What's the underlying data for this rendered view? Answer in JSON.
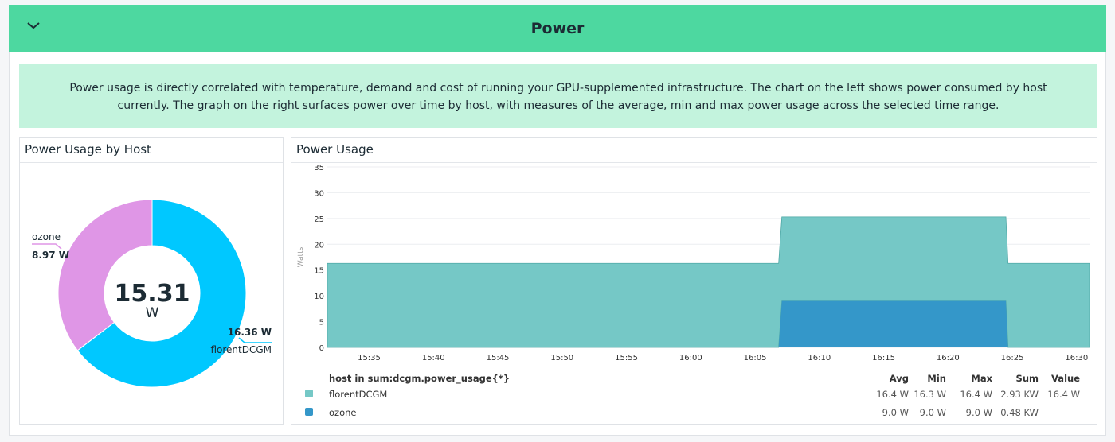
{
  "header": {
    "title": "Power",
    "collapse_icon": "chevron-down-icon",
    "color": "#4dd8a0"
  },
  "description": "Power usage is directly correlated with temperature, demand and cost of running your GPU-supplemented infrastructure. The chart on the left shows power consumed by host currently. The graph on the right surfaces power over time by host, with measures of the average, min and max power usage across the selected time range.",
  "chart_data": [
    {
      "type": "pie",
      "title": "Power Usage by Host",
      "donut": true,
      "center_value": "15.31",
      "center_unit": "W",
      "slices": [
        {
          "label": "florentDCGM",
          "value": 16.36,
          "display": "16.36 W",
          "color": "#00c8ff"
        },
        {
          "label": "ozone",
          "value": 8.97,
          "display": "8.97 W",
          "color": "#df96e6"
        }
      ]
    },
    {
      "type": "area",
      "stacked": true,
      "title": "Power Usage",
      "ylabel": "Watts",
      "ylim": [
        0,
        35
      ],
      "yticks": [
        0,
        5,
        10,
        15,
        20,
        25,
        30,
        35
      ],
      "xlim": [
        "15:31:45",
        "16:31:00"
      ],
      "xticks": [
        "15:35",
        "15:40",
        "15:45",
        "15:50",
        "15:55",
        "16:00",
        "16:05",
        "16:10",
        "16:15",
        "16:20",
        "16:25",
        "16:30"
      ],
      "grid": true,
      "series": [
        {
          "name": "ozone",
          "color": "#3497c9",
          "points": [
            [
              "16:06:50",
              0
            ],
            [
              "16:07:05",
              9.0
            ],
            [
              "16:24:30",
              9.0
            ],
            [
              "16:24:40",
              0
            ]
          ]
        },
        {
          "name": "florentDCGM",
          "color": "#75c8c6",
          "points": [
            [
              "15:31:45",
              16.3
            ],
            [
              "16:31:00",
              16.3
            ]
          ]
        }
      ]
    }
  ],
  "legend": {
    "header": "host in sum:dcgm.power_usage{*}",
    "columns": [
      "Avg",
      "Min",
      "Max",
      "Sum",
      "Value"
    ],
    "rows": [
      {
        "name": "florentDCGM",
        "color": "#75c8c6",
        "avg": "16.4 W",
        "min": "16.3 W",
        "max": "16.4 W",
        "sum": "2.93 KW",
        "value": "16.4 W"
      },
      {
        "name": "ozone",
        "color": "#3497c9",
        "avg": "9.0 W",
        "min": "9.0 W",
        "max": "9.0 W",
        "sum": "0.48 KW",
        "value": "—"
      }
    ]
  }
}
